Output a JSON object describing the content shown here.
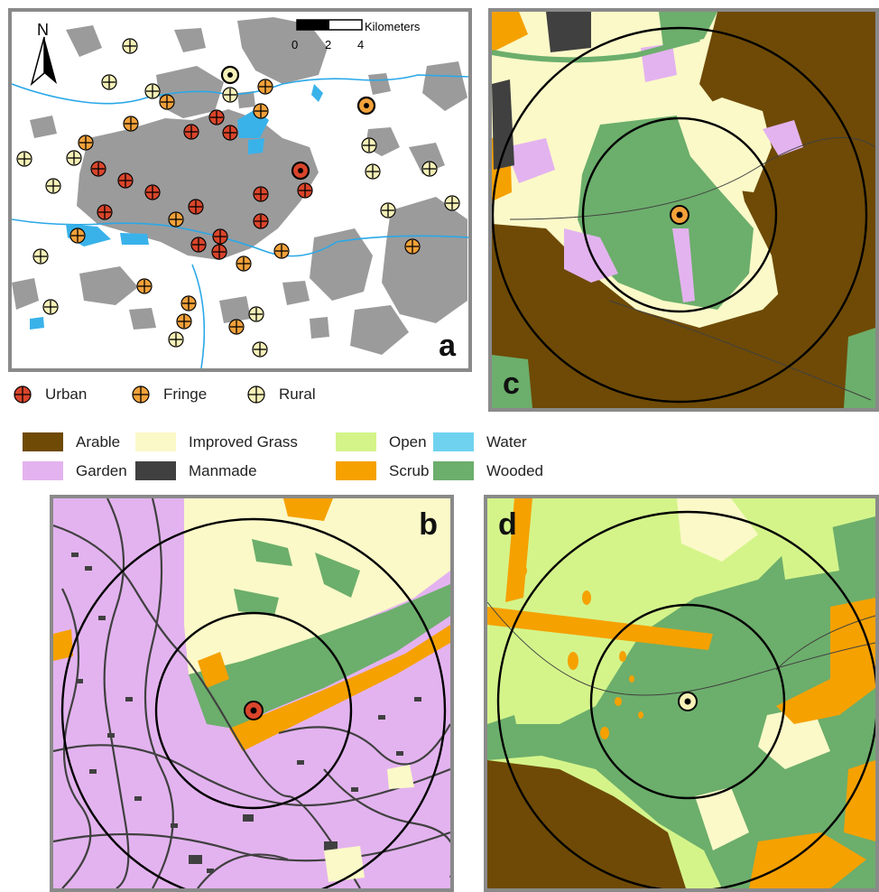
{
  "panel_a": {
    "label": "a",
    "north_label": "N",
    "scale_unit": "Kilometers",
    "scale_ticks": [
      "0",
      "2",
      "4"
    ]
  },
  "panel_b": {
    "label": "b"
  },
  "panel_c": {
    "label": "c"
  },
  "panel_d": {
    "label": "d"
  },
  "site_legend": [
    {
      "label": "Urban",
      "color": "#d9452b"
    },
    {
      "label": "Fringe",
      "color": "#f2a13a"
    },
    {
      "label": "Rural",
      "color": "#f7f1b8"
    }
  ],
  "landcover_legend": [
    {
      "label": "Arable",
      "color": "#6e4a06"
    },
    {
      "label": "Improved Grass",
      "color": "#fbf9c8"
    },
    {
      "label": "Open",
      "color": "#d4f48a"
    },
    {
      "label": "Water",
      "color": "#6fd3f0"
    },
    {
      "label": "Garden",
      "color": "#e3b3ef"
    },
    {
      "label": "Manmade",
      "color": "#404040"
    },
    {
      "label": "Scrub",
      "color": "#f5a100"
    },
    {
      "label": "Wooded",
      "color": "#6cae6c"
    }
  ]
}
